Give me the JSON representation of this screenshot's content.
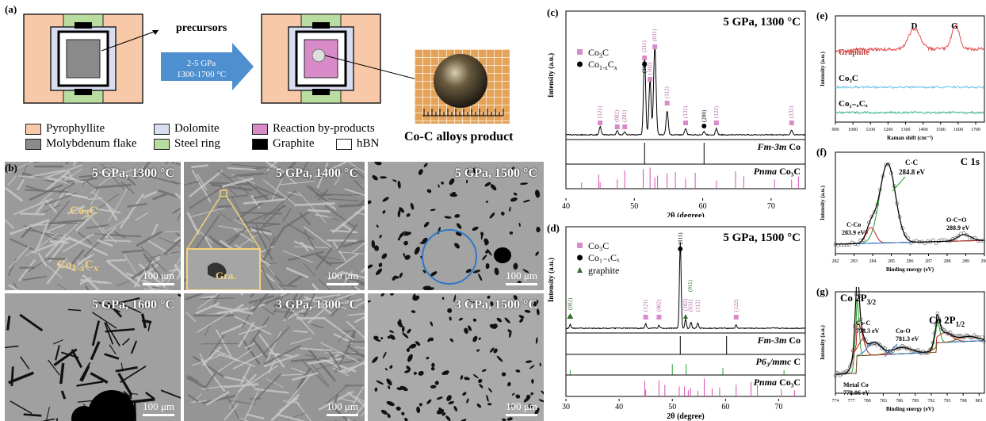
{
  "panel_labels": {
    "a": "(a)",
    "b": "(b)",
    "c": "(c)",
    "d": "(d)",
    "e": "(e)",
    "f": "(f)",
    "g": "(g)"
  },
  "schematic": {
    "precursors": "precursors",
    "arrow_line1": "2-5 GPa",
    "arrow_line2": "1300-1700 °C",
    "product": "Co-C alloys product",
    "legend": [
      {
        "label": "Pyrophyllite",
        "color": "#f8c9a8"
      },
      {
        "label": "Dolomite",
        "color": "#d8ddf0"
      },
      {
        "label": "Reaction by-products",
        "color": "#d98ac8"
      },
      {
        "label": "Molybdenum flake",
        "color": "#8a8a8a"
      },
      {
        "label": "Steel ring",
        "color": "#b9dca0"
      },
      {
        "label": "Graphite",
        "color": "#000000"
      },
      {
        "label": "hBN",
        "color": "#ffffff"
      }
    ]
  },
  "micrographs": [
    {
      "condition": "5 GPa, 1300 °C",
      "scale": "100 μm",
      "ann1": "Co3C",
      "ann2": "Co1-xCx"
    },
    {
      "condition": "5 GPa, 1400 °C",
      "scale": "100 μm",
      "ann1": "Gra."
    },
    {
      "condition": "5 GPa, 1500 °C",
      "scale": "100 μm"
    },
    {
      "condition": "5 GPa, 1600 °C",
      "scale": "100 μm"
    },
    {
      "condition": "3 GPa, 1300 °C",
      "scale": "100 μm"
    },
    {
      "condition": "3 GPa, 1500 °C",
      "scale": "100 μm"
    }
  ],
  "chart_data": [
    {
      "type": "line",
      "panel": "(c)",
      "title": "5 GPa, 1300 °C",
      "xlabel": "2θ (degree)",
      "ylabel": "Intensity (a.u.)",
      "xlim": [
        40,
        75
      ],
      "xticks": [
        40,
        50,
        60,
        70
      ],
      "legend": [
        "Co3C",
        "Co1-xCx"
      ],
      "peaks_Co3C": [
        {
          "x": 45.0,
          "label": "(121)"
        },
        {
          "x": 47.5,
          "label": "(002)"
        },
        {
          "x": 48.6,
          "label": "(201)"
        },
        {
          "x": 52.3,
          "label": "(102)"
        },
        {
          "x": 54.8,
          "label": "(112)"
        },
        {
          "x": 57.5,
          "label": "(131)"
        },
        {
          "x": 62.0,
          "label": "(122)"
        },
        {
          "x": 73.0,
          "label": "(132)"
        }
      ],
      "peaks_main": [
        {
          "x": 51.5,
          "label": "(211)"
        },
        {
          "x": 51.6,
          "label": "(111)"
        },
        {
          "x": 53.0,
          "label": "(031)"
        }
      ],
      "peak_Co": {
        "x": 60.2,
        "label": "(200)"
      },
      "references": [
        {
          "name": "Fm-3m Co",
          "lines": [
            51.5,
            60.2
          ]
        },
        {
          "name": "Pnma Co3C",
          "lines": [
            42.3,
            44.8,
            45.0,
            47.5,
            48.6,
            51.3,
            52.3,
            53.0,
            53.4,
            54.8,
            56.0,
            57.5,
            58.9,
            62.0,
            64.8,
            66.0,
            70.5,
            73.0,
            74.0
          ]
        }
      ]
    },
    {
      "type": "line",
      "panel": "(d)",
      "title": "5 GPa, 1500 °C",
      "xlabel": "2θ (degree)",
      "ylabel": "Intensity (a.u.)",
      "xlim": [
        30,
        75
      ],
      "xticks": [
        30,
        40,
        50,
        60,
        70
      ],
      "legend": [
        "Co3C",
        "Co1-xCx",
        "graphite"
      ],
      "peak_labels": [
        {
          "x": 30.8,
          "label": "(002)"
        },
        {
          "x": 45.0,
          "label": "(121)"
        },
        {
          "x": 47.5,
          "label": "(002)"
        },
        {
          "x": 51.5,
          "label": "(111)"
        },
        {
          "x": 52.5,
          "label": "(102)"
        },
        {
          "x": 53.0,
          "label": "(011)"
        },
        {
          "x": 53.5,
          "label": "(031)"
        },
        {
          "x": 54.8,
          "label": "(112)"
        },
        {
          "x": 62.0,
          "label": "(122)"
        }
      ],
      "references": [
        {
          "name": "Fm-3m Co",
          "lines": [
            51.5,
            60.2
          ]
        },
        {
          "name": "P63/mmc C",
          "lines": [
            30.8,
            50.0,
            52.6,
            59.5,
            71.0
          ]
        },
        {
          "name": "Pnma Co3C",
          "lines": [
            44.8,
            45.0,
            47.5,
            48.6,
            51.3,
            52.3,
            53.0,
            53.4,
            54.8,
            56.0,
            57.5,
            58.9,
            62.0,
            64.8,
            66.0,
            70.5,
            73.0
          ]
        }
      ]
    },
    {
      "type": "line",
      "panel": "(e)",
      "xlabel": "Raman shift (cm⁻¹)",
      "ylabel": "Intensity (a.u.)",
      "xlim": [
        900,
        1750
      ],
      "xticks": [
        900,
        1000,
        1100,
        1200,
        1300,
        1400,
        1500,
        1600,
        1700
      ],
      "series": [
        {
          "name": "Graphite",
          "color": "#e34a4a"
        },
        {
          "name": "Co3C",
          "color": "#6cc4ea"
        },
        {
          "name": "Co1-xCx",
          "color": "#3bb38a"
        }
      ],
      "peaks": [
        {
          "x": 1350,
          "label": "D"
        },
        {
          "x": 1580,
          "label": "G"
        }
      ]
    },
    {
      "type": "line",
      "panel": "(f)",
      "title": "C 1s",
      "xlabel": "Binding energy (eV)",
      "ylabel": "Intensity (a.u.)",
      "xlim": [
        282,
        290
      ],
      "xticks": [
        282,
        283,
        284,
        285,
        286,
        287,
        288,
        289,
        290
      ],
      "annotations": [
        {
          "name": "C-C",
          "value": "284.8 eV",
          "x": 284.8
        },
        {
          "name": "C-Co",
          "value": "283.9 eV",
          "x": 283.9
        },
        {
          "name": "O-C=O",
          "value": "288.9 eV",
          "x": 288.9
        }
      ]
    },
    {
      "type": "line",
      "panel": "(g)",
      "xlabel": "Binding energy (eV)",
      "ylabel": "Intensity (a.u.)",
      "xlim": [
        774,
        802
      ],
      "xticks": [
        774,
        777,
        780,
        783,
        786,
        789,
        792,
        795,
        798,
        801
      ],
      "labels": [
        "Co 2P3/2",
        "Co 2P1/2"
      ],
      "annotations": [
        {
          "name": "Co-C",
          "value": "778.3 eV",
          "x": 778.3
        },
        {
          "name": "Co-O",
          "value": "781.3 eV",
          "x": 781.3
        },
        {
          "name": "Metal Co",
          "value": "778.06 eV",
          "x": 778.06
        }
      ]
    }
  ],
  "xrd_text": {
    "c_title": "5 GPa, 1300 °C",
    "d_title": "5 GPa, 1500 °C",
    "ref_fm3m": "Fm-3m",
    "ref_co": "Co",
    "ref_pnma": "Pnma",
    "ref_co3c": "Co3C",
    "ref_p63": "P63/mmc",
    "ref_c": "C",
    "xlabel": "2θ (degree)",
    "ylabel": "Intensity (a.u.)",
    "co200": "(200)"
  },
  "spec_text": {
    "e_ylabel": "Intensity (a.u.)",
    "e_xlabel": "Raman shift (cm⁻¹)",
    "D": "D",
    "G": "G",
    "graphite": "Graphite",
    "f_title": "C 1s",
    "cc": "C-C",
    "cc_val": "284.8 eV",
    "cco": "C-Co",
    "cco_val": "283.9 eV",
    "oco": "O-C=O",
    "oco_val": "288.9 eV",
    "f_xlabel": "Binding energy (eV)",
    "g_coc": "Co-C",
    "g_coc_val": "778.3 eV",
    "g_coo": "Co-O",
    "g_coo_val": "781.3 eV",
    "g_metal": "Metal Co",
    "g_metal_val": "778.06 eV",
    "g_xlabel": "Binding energy (eV)"
  }
}
